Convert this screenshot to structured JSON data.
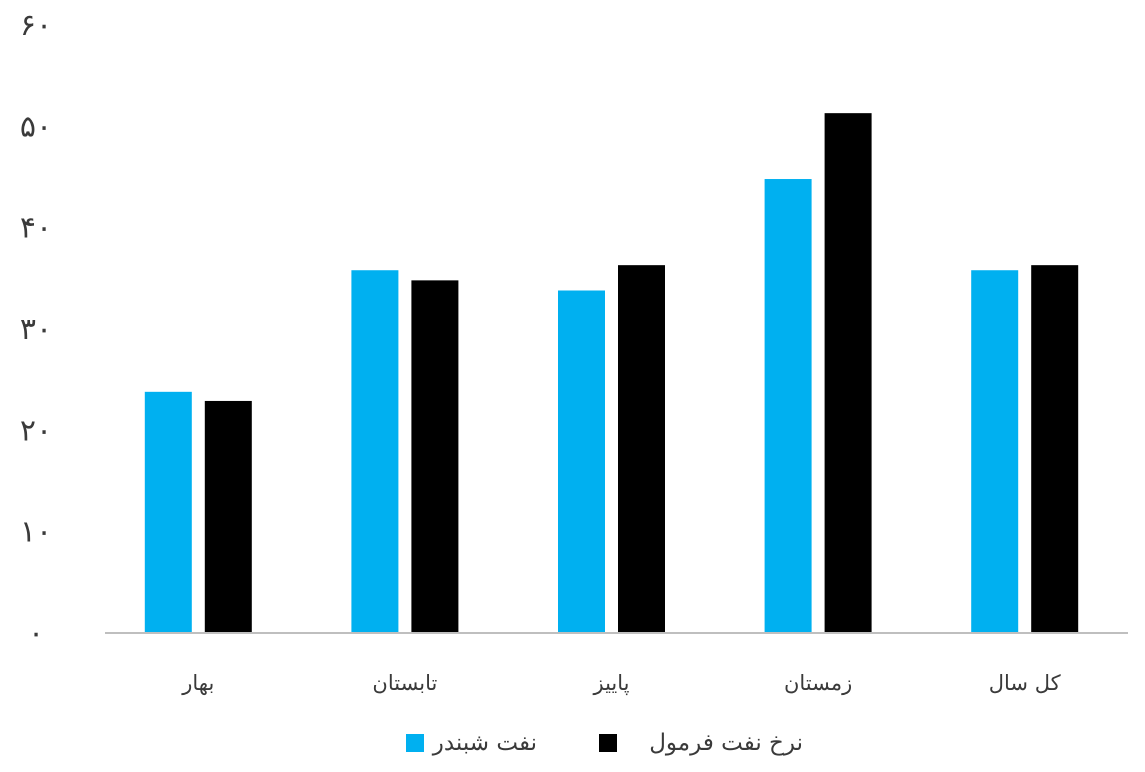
{
  "chart_data": {
    "type": "bar",
    "title": "",
    "xlabel": "",
    "ylabel": "",
    "categories": [
      "بهار",
      "تابستان",
      "پاییز",
      "زمستان",
      "کل سال"
    ],
    "series": [
      {
        "name": "نفت شبندر",
        "color": "#00b0f0",
        "values": [
          23.8,
          35.8,
          33.8,
          44.8,
          35.8
        ]
      },
      {
        "name": "نرخ نفت فرمول",
        "color": "#000000",
        "values": [
          22.9,
          34.8,
          36.3,
          51.3,
          36.3
        ]
      }
    ],
    "ylim": [
      0,
      60
    ],
    "yticks": [
      0,
      10,
      20,
      30,
      40,
      50,
      60
    ],
    "ytick_labels": [
      "۰",
      "۱۰",
      "۲۰",
      "۳۰",
      "۴۰",
      "۵۰",
      "۶۰"
    ],
    "grid": false,
    "legend": "bottom-center"
  }
}
